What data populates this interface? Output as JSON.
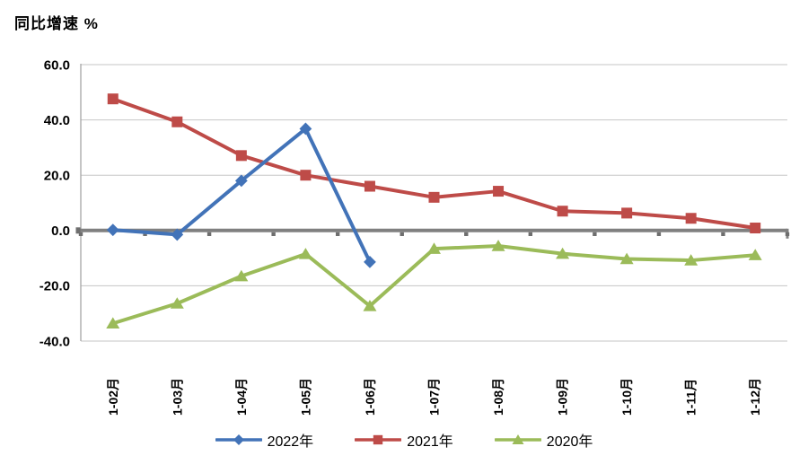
{
  "chart_data": {
    "type": "line",
    "title": "同比增速 %",
    "categories": [
      "1-02月",
      "1-03月",
      "1-04月",
      "1-05月",
      "1-06月",
      "1-07月",
      "1-08月",
      "1-09月",
      "1-10月",
      "1-11月",
      "1-12月"
    ],
    "series": [
      {
        "name": "2022年",
        "color": "#4273B8",
        "marker": "diamond",
        "values": [
          0.2,
          -1.5,
          18.0,
          36.8,
          -11.4,
          null,
          null,
          null,
          null,
          null,
          null
        ]
      },
      {
        "name": "2021年",
        "color": "#BE4B48",
        "marker": "square",
        "values": [
          47.6,
          39.3,
          27.1,
          20.0,
          16.0,
          12.0,
          14.2,
          7.0,
          6.3,
          4.4,
          0.9
        ]
      },
      {
        "name": "2020年",
        "color": "#9BBB59",
        "marker": "triangle",
        "values": [
          -33.6,
          -26.4,
          -16.5,
          -8.5,
          -27.3,
          -6.6,
          -5.6,
          -8.4,
          -10.3,
          -10.8,
          -8.9
        ]
      }
    ],
    "ylim": [
      -40,
      60
    ],
    "ytick_interval": 20,
    "ytick_format_decimals": 1,
    "grid": true,
    "legend_position": "bottom",
    "colors": {
      "gridline": "#C6C6C6",
      "zero_axis": "#808080",
      "axis_line": "#A6A6A6",
      "tick": "#6E6E6E",
      "text": "#000000",
      "background": "#FFFFFF"
    }
  }
}
